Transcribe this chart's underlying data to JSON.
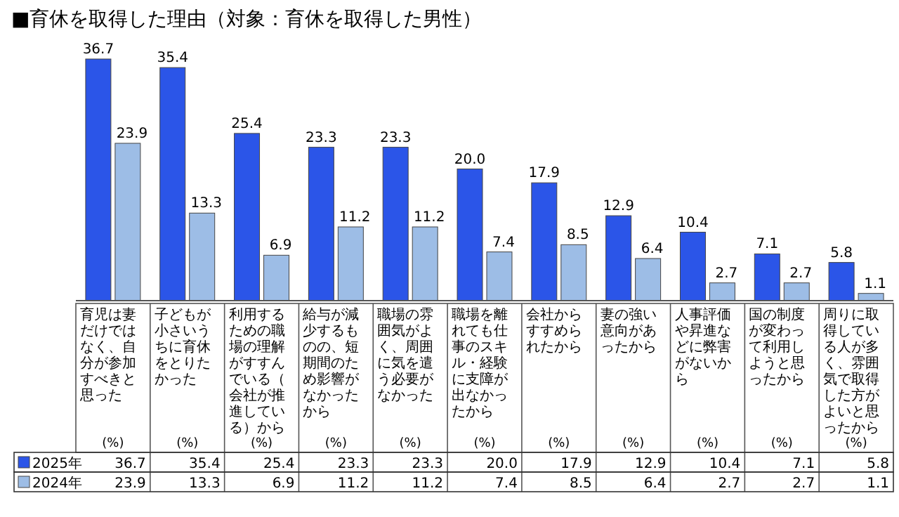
{
  "chart_data": {
    "type": "bar",
    "title": "■育休を取得した理由（対象：育休を取得した男性）",
    "categories": [
      "育児は妻だけではなく、自分が参加すべきと思った",
      "子どもが小さいうちに育休をとりたかった",
      "利用するための職場の理解がすすんでいる（会社が推進している）から",
      "給与が減少するものの、短期間のため影響がなかったから",
      "職場の雰囲気がよく、周囲に気を遣う必要がなかった",
      "職場を離れても仕事のスキル・経験に支障が出なかったから",
      "会社からすすめられたから",
      "妻の強い意向があったから",
      "人事評価や昇進などに弊害がないから",
      "国の制度が変わって利用しようと思ったから",
      "周りに取得している人が多く、雰囲気で取得した方がよいと思ったから"
    ],
    "series": [
      {
        "name": "2025年",
        "color": "#2b55e8",
        "values": [
          36.7,
          35.4,
          25.4,
          23.3,
          23.3,
          20.0,
          17.9,
          12.9,
          10.4,
          7.1,
          5.8
        ],
        "value_labels": [
          "36.7",
          "35.4",
          "25.4",
          "23.3",
          "23.3",
          "20.0",
          "17.9",
          "12.9",
          "10.4",
          "7.1",
          "5.8"
        ]
      },
      {
        "name": "2024年",
        "color": "#9dbde6",
        "values": [
          23.9,
          13.3,
          6.9,
          11.2,
          11.2,
          7.4,
          8.5,
          6.4,
          2.7,
          2.7,
          1.1
        ],
        "value_labels": [
          "23.9",
          "13.3",
          "6.9",
          "11.2",
          "11.2",
          "7.4",
          "8.5",
          "6.4",
          "2.7",
          "2.7",
          "1.1"
        ]
      }
    ],
    "data_labels": true,
    "annotations": [
      "(%)"
    ],
    "legend": "bottom left"
  }
}
